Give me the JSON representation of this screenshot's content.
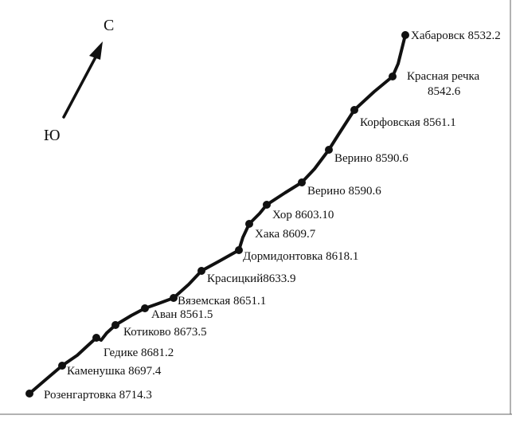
{
  "compass": {
    "north": "С",
    "south": "Ю"
  },
  "stations": [
    {
      "label": "Розенгартовка 8714.3"
    },
    {
      "label": "Каменушка 8697.4"
    },
    {
      "label": "Гедике 8681.2"
    },
    {
      "label": "Котиково 8673.5"
    },
    {
      "label": "Аван 8561.5"
    },
    {
      "label": "Вяземская 8651.1"
    },
    {
      "label": "Красицкий8633.9"
    },
    {
      "label": "Дормидонтовка 8618.1"
    },
    {
      "label": "Хака 8609.7"
    },
    {
      "label": "Хор 8603.10"
    },
    {
      "label": "Верино 8590.6"
    },
    {
      "label": "Верино 8590.6"
    },
    {
      "label": "Корфовская 8561.1"
    },
    {
      "label_line1": "Красная речка",
      "label_line2": "8542.6"
    },
    {
      "label": "Хабаровск 8532.2"
    }
  ]
}
